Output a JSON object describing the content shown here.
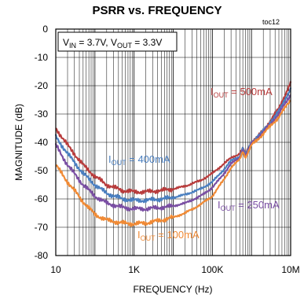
{
  "chart_data": {
    "type": "line",
    "title": "PSRR vs. FREQUENCY",
    "tag": "toc12",
    "xlabel": "FREQUENCY (Hz)",
    "ylabel": "MAGNITUDE (dB)",
    "x_scale": "log",
    "xlim": [
      10,
      10000000
    ],
    "ylim": [
      -80,
      0
    ],
    "x_ticks": [
      {
        "value": 10,
        "label": "10"
      },
      {
        "value": 1000,
        "label": "1K"
      },
      {
        "value": 100000,
        "label": "100K"
      },
      {
        "value": 10000000,
        "label": "10M"
      }
    ],
    "y_ticks": [
      0,
      -10,
      -20,
      -30,
      -40,
      -50,
      -60,
      -70,
      -80
    ],
    "grid": true,
    "conditions": {
      "vin_main": "V",
      "vin_sub": "IN",
      "vin_val": " = 3.7V, ",
      "vout_main": "V",
      "vout_sub": "OUT",
      "vout_val": " = 3.3V"
    },
    "series": [
      {
        "name": "500mA",
        "label_main": "I",
        "label_sub": "OUT",
        "label_val": " = 500mA",
        "color": "#b83c3c",
        "x": [
          10,
          20,
          50,
          100,
          200,
          500,
          1000,
          2000,
          5000,
          10000,
          20000,
          50000,
          100000,
          200000,
          300000,
          500000,
          600000,
          700000,
          1000000,
          2000000,
          5000000,
          10000000
        ],
        "y": [
          -35,
          -41,
          -48,
          -52,
          -55,
          -57,
          -57.5,
          -57.5,
          -57,
          -56.5,
          -55.5,
          -53.5,
          -51,
          -47.5,
          -45.5,
          -44,
          -42,
          -44,
          -40,
          -36,
          -28,
          -19
        ]
      },
      {
        "name": "400mA",
        "label_main": "I",
        "label_sub": "OUT",
        "label_val": " = 400mA",
        "color": "#4a7fc0",
        "x": [
          10,
          20,
          50,
          100,
          200,
          500,
          1000,
          2000,
          5000,
          10000,
          20000,
          50000,
          100000,
          200000,
          300000,
          500000,
          600000,
          700000,
          1000000,
          2000000,
          5000000,
          10000000
        ],
        "y": [
          -38,
          -44,
          -51,
          -55,
          -58,
          -60,
          -60.5,
          -60.5,
          -60,
          -59.5,
          -58.5,
          -56.5,
          -54,
          -49.5,
          -46.5,
          -45,
          -42,
          -44.5,
          -40,
          -36,
          -29,
          -21
        ]
      },
      {
        "name": "250mA",
        "label_main": "I",
        "label_sub": "OUT",
        "label_val": " = 250mA",
        "color": "#7a4ea3",
        "x": [
          10,
          20,
          50,
          100,
          200,
          500,
          1000,
          2000,
          5000,
          10000,
          20000,
          50000,
          100000,
          200000,
          300000,
          500000,
          600000,
          700000,
          1000000,
          2000000,
          5000000,
          10000000
        ],
        "y": [
          -41,
          -48,
          -55,
          -59,
          -61.5,
          -63,
          -63.5,
          -63.5,
          -63,
          -62.5,
          -61.5,
          -59,
          -56,
          -51,
          -47.5,
          -45.5,
          -42.5,
          -45,
          -40.5,
          -36.5,
          -30,
          -23
        ]
      },
      {
        "name": "100mA",
        "label_main": "I",
        "label_sub": "OUT",
        "label_val": " = 100mA",
        "color": "#f08a35",
        "x": [
          10,
          20,
          50,
          100,
          200,
          500,
          1000,
          2000,
          5000,
          10000,
          20000,
          50000,
          100000,
          200000,
          300000,
          500000,
          600000,
          700000,
          1000000,
          2000000,
          5000000,
          10000000
        ],
        "y": [
          -48,
          -54,
          -61,
          -65.5,
          -67.5,
          -68.5,
          -68.8,
          -68.5,
          -67.5,
          -66.5,
          -65,
          -62,
          -59,
          -53,
          -49,
          -46,
          -43,
          -45.5,
          -41,
          -37,
          -31,
          -25
        ]
      }
    ]
  }
}
